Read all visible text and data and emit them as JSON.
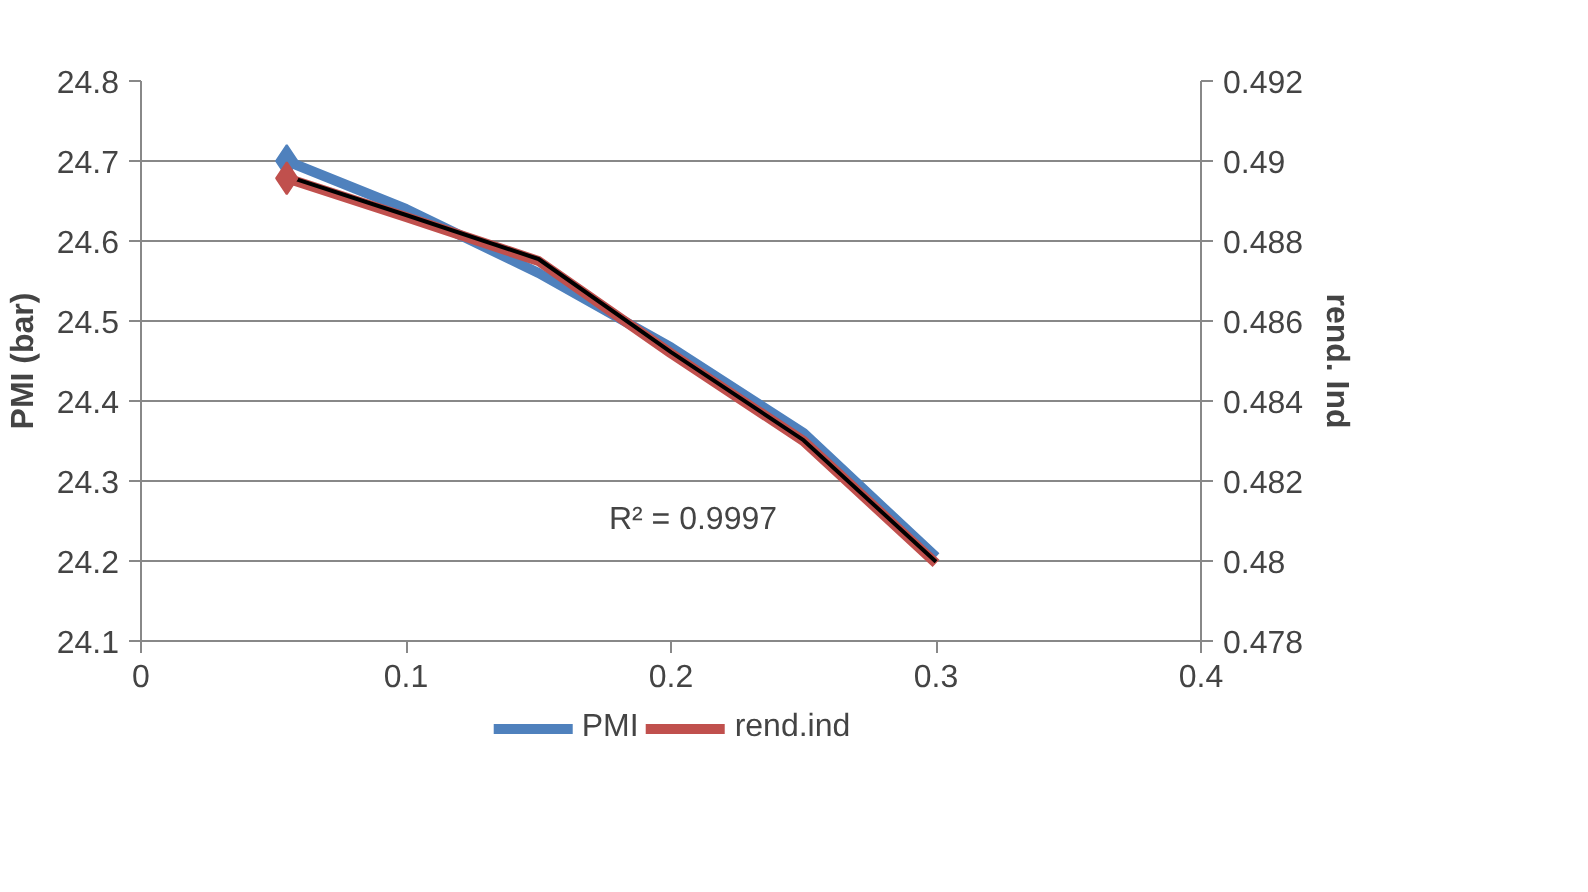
{
  "chart_data": {
    "type": "line",
    "xlabel": null,
    "ylabel": "PMI (bar)",
    "y2label": "rend. Ind",
    "xlim": [
      0,
      0.4
    ],
    "xticks": [
      0,
      0.1,
      0.2,
      0.3,
      0.4
    ],
    "ylim": [
      24.1,
      24.8
    ],
    "yticks": [
      24.1,
      24.2,
      24.3,
      24.4,
      24.5,
      24.6,
      24.7,
      24.8
    ],
    "y2lim": [
      0.478,
      0.492
    ],
    "y2ticks": [
      0.478,
      0.48,
      0.482,
      0.484,
      0.486,
      0.488,
      0.49,
      0.492
    ],
    "grid": "y",
    "legend": "bottom",
    "line_style": "solid",
    "annotations": [
      "R² = 0.9997"
    ],
    "series": [
      {
        "name": "PMI",
        "color": "#4f81bd",
        "x": [
          0.055,
          0.1,
          0.15,
          0.2,
          0.25,
          0.3
        ],
        "values": [
          24.7,
          24.64,
          24.56,
          24.467,
          24.36,
          24.205
        ]
      },
      {
        "name": "rend.ind",
        "color": "#c0504d",
        "axis": "y2",
        "x": [
          0.055,
          0.1,
          0.15,
          0.2,
          0.25,
          0.3
        ],
        "values": [
          0.48957,
          0.4886,
          0.4875,
          0.48519,
          0.483,
          0.47994
        ]
      },
      {
        "type": "line",
        "color": "#000000",
        "axis": "y2",
        "x": [
          0.055,
          0.1,
          0.15,
          0.2,
          0.25,
          0.3
        ],
        "values": [
          0.48962,
          0.48865,
          0.48755,
          0.48522,
          0.48302,
          0.47998
        ]
      },
      {
        "type": "scatter",
        "marker": "diamond",
        "color": "#4f81bd",
        "x": [
          0.055
        ],
        "values": [
          24.7
        ]
      },
      {
        "type": "scatter",
        "marker": "diamond",
        "color": "#c0504d",
        "axis": "y2",
        "x": [
          0.055
        ],
        "values": [
          0.48957
        ]
      }
    ]
  }
}
